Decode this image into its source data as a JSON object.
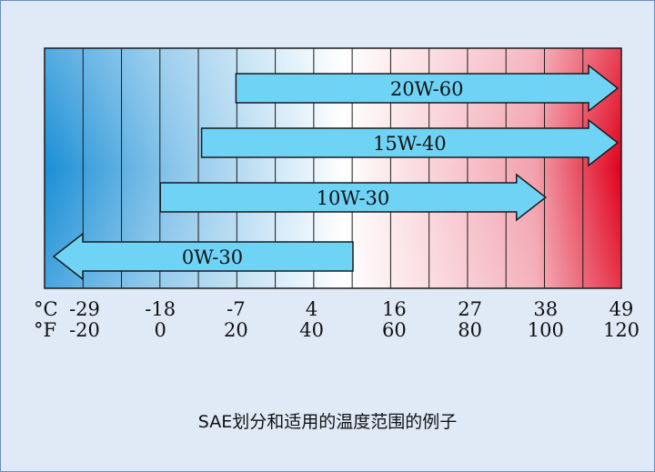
{
  "scale": {
    "celsius_unit": "°C",
    "fahrenheit_unit": "°F",
    "celsius_ticks": [
      "-29",
      "-18",
      "-7",
      "4",
      "16",
      "27",
      "38",
      "49"
    ],
    "fahrenheit_ticks": [
      "-20",
      "0",
      "20",
      "40",
      "60",
      "80",
      "100",
      "120"
    ]
  },
  "ranges": [
    {
      "label": "20W-60",
      "from_c": -7,
      "to_c": 49,
      "direction": "right"
    },
    {
      "label": "15W-40",
      "from_c": -12,
      "to_c": 49,
      "direction": "right"
    },
    {
      "label": "10W-30",
      "from_c": -18,
      "to_c": 38,
      "direction": "right"
    },
    {
      "label": "0W-30",
      "from_c": -40,
      "to_c": 10,
      "direction": "left"
    }
  ],
  "caption": "SAE划分和适用的温度范围的例子",
  "colors": {
    "cold": "#1a8fd6",
    "neutral": "#ffffff",
    "hot": "#e0001c",
    "arrow_fill": "#6fd3f6",
    "outline": "#1a1a1a"
  }
}
